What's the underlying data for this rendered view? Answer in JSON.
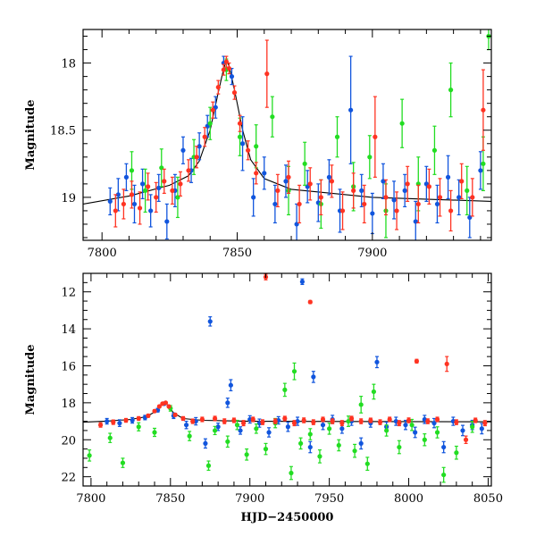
{
  "chart_data": [
    {
      "panel": "top",
      "type": "scatter",
      "title": "",
      "xlabel": "",
      "ylabel": "Magnitude",
      "xlim": [
        7793,
        7944
      ],
      "ylim": [
        19.32,
        17.75
      ],
      "y_inverted": true,
      "grid": false,
      "legend": "none",
      "xticks": [
        {
          "value": 7800,
          "label": "7800"
        },
        {
          "value": 7850,
          "label": "7850"
        },
        {
          "value": 7900,
          "label": "7900"
        }
      ],
      "yticks": [
        {
          "value": 18,
          "label": "18"
        },
        {
          "value": 18.5,
          "label": "18.5"
        },
        {
          "value": 19,
          "label": "19"
        }
      ],
      "model_curve": {
        "color": "#000000",
        "x": [
          7793,
          7810,
          7825,
          7832,
          7836,
          7840,
          7843,
          7845,
          7846,
          7847,
          7849,
          7852,
          7855,
          7860,
          7870,
          7900,
          7944
        ],
        "y": [
          19.05,
          18.99,
          18.91,
          18.84,
          18.73,
          18.5,
          18.22,
          18.04,
          17.98,
          18.02,
          18.2,
          18.5,
          18.72,
          18.86,
          18.94,
          19.0,
          19.03
        ]
      },
      "series": [
        {
          "color": "#1155dd",
          "x": [
            7803,
            7806,
            7809,
            7812,
            7815,
            7818,
            7821,
            7824,
            7827,
            7830,
            7833,
            7836,
            7839,
            7842,
            7845,
            7848,
            7852,
            7856,
            7860,
            7864,
            7868,
            7872,
            7876,
            7880,
            7884,
            7888,
            7892,
            7896,
            7900,
            7904,
            7908,
            7912,
            7916,
            7920,
            7924,
            7928,
            7932,
            7936,
            7940
          ],
          "y": [
            19.03,
            18.98,
            18.85,
            19.05,
            18.9,
            19.1,
            18.93,
            19.18,
            18.95,
            18.65,
            18.8,
            18.62,
            18.47,
            18.33,
            18.0,
            18.1,
            18.6,
            19.0,
            18.82,
            19.05,
            18.88,
            19.2,
            18.92,
            19.04,
            18.85,
            19.1,
            18.35,
            18.95,
            19.12,
            18.88,
            19.02,
            18.95,
            19.18,
            18.9,
            19.05,
            18.85,
            19.0,
            19.15,
            18.8
          ],
          "yerr": [
            0.1,
            0.12,
            0.1,
            0.14,
            0.11,
            0.12,
            0.1,
            0.13,
            0.12,
            0.1,
            0.09,
            0.1,
            0.08,
            0.08,
            0.05,
            0.06,
            0.2,
            0.14,
            0.12,
            0.14,
            0.12,
            0.15,
            0.12,
            0.14,
            0.13,
            0.16,
            0.4,
            0.12,
            0.15,
            0.13,
            0.14,
            0.12,
            0.15,
            0.13,
            0.14,
            0.16,
            0.13,
            0.15,
            0.14
          ]
        },
        {
          "color": "#22dd22",
          "x": [
            7811,
            7816,
            7822,
            7828,
            7834,
            7840,
            7846,
            7851,
            7857,
            7863,
            7869,
            7875,
            7881,
            7887,
            7893,
            7899,
            7905,
            7911,
            7917,
            7923,
            7929,
            7935,
            7941,
            7943
          ],
          "y": [
            18.8,
            18.95,
            18.78,
            19.0,
            18.7,
            18.45,
            18.05,
            18.55,
            18.62,
            18.4,
            18.95,
            18.75,
            19.05,
            18.55,
            18.92,
            18.7,
            19.1,
            18.45,
            18.9,
            18.65,
            18.2,
            18.95,
            18.75,
            17.8
          ],
          "yerr": [
            0.14,
            0.16,
            0.14,
            0.15,
            0.13,
            0.12,
            0.08,
            0.14,
            0.16,
            0.15,
            0.18,
            0.16,
            0.18,
            0.15,
            0.18,
            0.16,
            0.2,
            0.18,
            0.2,
            0.18,
            0.2,
            0.18,
            0.2,
            0.1
          ]
        },
        {
          "color": "#ff3322",
          "x": [
            7805,
            7808,
            7811,
            7814,
            7817,
            7820,
            7823,
            7826,
            7829,
            7832,
            7835,
            7838,
            7841,
            7843,
            7845,
            7846,
            7847,
            7849,
            7851,
            7854,
            7857,
            7861,
            7865,
            7869,
            7873,
            7877,
            7881,
            7885,
            7889,
            7893,
            7897,
            7901,
            7905,
            7909,
            7913,
            7917,
            7921,
            7925,
            7929,
            7933,
            7937,
            7941
          ],
          "y": [
            19.1,
            19.05,
            18.98,
            19.08,
            18.92,
            19.0,
            18.88,
            18.95,
            18.9,
            18.8,
            18.7,
            18.55,
            18.35,
            18.18,
            18.05,
            17.99,
            18.04,
            18.22,
            18.45,
            18.65,
            18.82,
            18.08,
            18.95,
            18.85,
            19.05,
            18.9,
            19.0,
            18.88,
            19.1,
            18.95,
            19.05,
            18.55,
            19.0,
            19.1,
            18.9,
            19.05,
            18.92,
            19.0,
            19.1,
            18.88,
            19.0,
            18.35
          ],
          "yerr": [
            0.12,
            0.11,
            0.1,
            0.12,
            0.1,
            0.11,
            0.09,
            0.1,
            0.09,
            0.08,
            0.08,
            0.07,
            0.06,
            0.05,
            0.04,
            0.04,
            0.04,
            0.05,
            0.06,
            0.07,
            0.08,
            0.25,
            0.12,
            0.12,
            0.14,
            0.12,
            0.13,
            0.12,
            0.14,
            0.13,
            0.14,
            0.3,
            0.13,
            0.14,
            0.13,
            0.14,
            0.13,
            0.14,
            0.15,
            0.13,
            0.14,
            0.3
          ]
        }
      ]
    },
    {
      "panel": "bottom",
      "type": "scatter",
      "title": "",
      "xlabel": "HJD−2450000",
      "ylabel": "Magnitude",
      "xlim": [
        7795,
        8052
      ],
      "ylim": [
        22.5,
        11.0
      ],
      "y_inverted": true,
      "grid": false,
      "legend": "none",
      "xticks": [
        {
          "value": 7800,
          "label": "7800"
        },
        {
          "value": 7850,
          "label": "7850"
        },
        {
          "value": 7900,
          "label": "7900"
        },
        {
          "value": 7950,
          "label": "7950"
        },
        {
          "value": 8000,
          "label": "8000"
        },
        {
          "value": 8050,
          "label": "8050"
        }
      ],
      "yticks": [
        {
          "value": 12,
          "label": "12"
        },
        {
          "value": 14,
          "label": "14"
        },
        {
          "value": 16,
          "label": "16"
        },
        {
          "value": 18,
          "label": "18"
        },
        {
          "value": 20,
          "label": "20"
        },
        {
          "value": 22,
          "label": "22"
        }
      ],
      "model_curve": {
        "color": "#000000",
        "x": [
          7795,
          7810,
          7825,
          7835,
          7840,
          7844,
          7846,
          7848,
          7852,
          7858,
          7870,
          7900,
          8052
        ],
        "y": [
          19.05,
          18.99,
          18.9,
          18.75,
          18.5,
          18.1,
          17.98,
          18.1,
          18.55,
          18.85,
          18.95,
          19.0,
          19.03
        ]
      },
      "series": [
        {
          "color": "#1155dd",
          "x": [
            7810,
            7818,
            7826,
            7834,
            7842,
            7846,
            7852,
            7860,
            7866,
            7872,
            7875,
            7880,
            7886,
            7888,
            7894,
            7900,
            7906,
            7912,
            7918,
            7924,
            7930,
            7933,
            7938,
            7940,
            7946,
            7952,
            7958,
            7964,
            7970,
            7976,
            7980,
            7986,
            7992,
            7998,
            8004,
            8010,
            8016,
            8022,
            8028,
            8034,
            8040,
            8046
          ],
          "y": [
            19.0,
            19.1,
            18.95,
            18.8,
            18.4,
            18.05,
            18.7,
            19.2,
            19.0,
            20.2,
            13.6,
            19.3,
            18.0,
            17.05,
            19.5,
            18.9,
            19.1,
            19.6,
            18.95,
            19.3,
            19.0,
            11.45,
            20.4,
            16.6,
            19.2,
            18.9,
            19.4,
            19.0,
            20.2,
            19.1,
            15.8,
            19.3,
            19.0,
            19.2,
            19.6,
            18.9,
            19.1,
            20.4,
            19.0,
            19.5,
            19.2,
            19.4
          ],
          "yerr": [
            0.15,
            0.18,
            0.15,
            0.12,
            0.1,
            0.08,
            0.15,
            0.2,
            0.2,
            0.25,
            0.25,
            0.2,
            0.25,
            0.3,
            0.2,
            0.2,
            0.22,
            0.25,
            0.2,
            0.25,
            0.22,
            0.15,
            0.3,
            0.3,
            0.25,
            0.22,
            0.25,
            0.22,
            0.3,
            0.22,
            0.3,
            0.25,
            0.22,
            0.25,
            0.28,
            0.22,
            0.25,
            0.3,
            0.22,
            0.28,
            0.25,
            0.28
          ]
        },
        {
          "color": "#22dd22",
          "x": [
            7799,
            7812,
            7820,
            7830,
            7840,
            7850,
            7862,
            7874,
            7878,
            7886,
            7892,
            7898,
            7904,
            7910,
            7916,
            7922,
            7926,
            7928,
            7932,
            7938,
            7944,
            7950,
            7956,
            7962,
            7966,
            7970,
            7974,
            7978,
            7986,
            7994,
            8002,
            8010,
            8018,
            8022,
            8030,
            8040
          ],
          "y": [
            20.85,
            19.9,
            21.25,
            19.3,
            19.6,
            18.3,
            19.8,
            21.4,
            19.5,
            20.1,
            19.2,
            20.8,
            19.4,
            20.5,
            19.1,
            17.3,
            21.8,
            16.3,
            20.2,
            19.7,
            20.9,
            19.4,
            20.3,
            19.0,
            20.6,
            18.1,
            21.3,
            17.4,
            19.5,
            20.4,
            19.2,
            20.0,
            19.6,
            21.9,
            20.7,
            19.3
          ],
          "yerr": [
            0.3,
            0.25,
            0.25,
            0.22,
            0.22,
            0.15,
            0.25,
            0.25,
            0.22,
            0.3,
            0.25,
            0.3,
            0.25,
            0.3,
            0.25,
            0.35,
            0.35,
            0.45,
            0.3,
            0.3,
            0.35,
            0.3,
            0.3,
            0.28,
            0.35,
            0.45,
            0.35,
            0.4,
            0.3,
            0.35,
            0.3,
            0.32,
            0.3,
            0.4,
            0.35,
            0.3
          ]
        },
        {
          "color": "#ff3322",
          "x": [
            7806,
            7814,
            7822,
            7830,
            7836,
            7840,
            7843,
            7845,
            7847,
            7849,
            7853,
            7858,
            7864,
            7870,
            7878,
            7884,
            7890,
            7896,
            7902,
            7908,
            7910,
            7916,
            7922,
            7928,
            7934,
            7938,
            7940,
            7946,
            7952,
            7958,
            7964,
            7970,
            7976,
            7982,
            7988,
            7994,
            8000,
            8005,
            8012,
            8018,
            8024,
            8030,
            8036,
            8042,
            8048
          ],
          "y": [
            19.2,
            19.05,
            18.95,
            18.85,
            18.7,
            18.45,
            18.2,
            18.05,
            18.0,
            18.2,
            18.65,
            18.85,
            19.0,
            18.9,
            18.85,
            19.0,
            18.95,
            19.1,
            18.9,
            19.05,
            11.2,
            19.0,
            18.85,
            19.1,
            18.95,
            12.55,
            19.05,
            18.9,
            19.0,
            19.1,
            18.85,
            19.0,
            18.95,
            19.05,
            18.9,
            19.1,
            18.95,
            15.75,
            19.0,
            18.9,
            15.9,
            19.05,
            20.0,
            18.95,
            19.1
          ],
          "yerr": [
            0.12,
            0.12,
            0.1,
            0.1,
            0.08,
            0.07,
            0.06,
            0.05,
            0.05,
            0.06,
            0.08,
            0.1,
            0.12,
            0.12,
            0.12,
            0.13,
            0.12,
            0.14,
            0.12,
            0.13,
            0.15,
            0.13,
            0.12,
            0.14,
            0.13,
            0.08,
            0.13,
            0.12,
            0.13,
            0.14,
            0.12,
            0.13,
            0.12,
            0.13,
            0.12,
            0.14,
            0.13,
            0.1,
            0.13,
            0.12,
            0.4,
            0.13,
            0.2,
            0.12,
            0.14
          ]
        }
      ]
    }
  ]
}
